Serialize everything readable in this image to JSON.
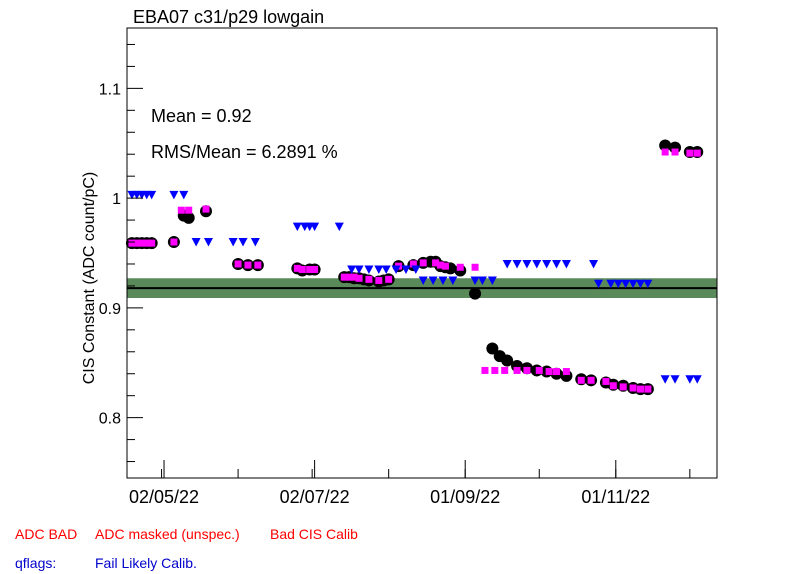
{
  "chart_data": {
    "type": "scatter",
    "title": "EBA07 c31/p29 lowgain",
    "ylabel": "CIS Constant (ADC count/pC)",
    "xlabel": "",
    "ylim": [
      0.745,
      1.155
    ],
    "y_ticks": [
      0.8,
      0.9,
      1,
      1.1
    ],
    "y_tick_labels": [
      "0.8",
      "0.9",
      "1",
      "1.1"
    ],
    "x_ticks": [
      "2022-05-02",
      "2022-07-02",
      "2022-09-01",
      "2022-11-01"
    ],
    "x_tick_labels": [
      "02/05/22",
      "02/07/22",
      "01/09/22",
      "01/11/22"
    ],
    "xlim": [
      "2022-04-17",
      "2022-12-12"
    ],
    "grid": false,
    "stats": {
      "mean_label": "Mean = 0.92",
      "rms_label": "RMS/Mean = 6.2891 %"
    },
    "mean_value": 0.918,
    "band": [
      0.909,
      0.927
    ],
    "colors": {
      "calibration": "#000000",
      "masked": "#ff00ff",
      "flag": "#0000ff",
      "band": "#5a8a5a",
      "legend_red": "#ff0000",
      "legend_blue": "#0000cc"
    },
    "series": [
      {
        "marker": "circle",
        "points": [
          [
            "2022-04-19",
            0.959
          ],
          [
            "2022-04-21",
            0.959
          ],
          [
            "2022-04-23",
            0.959
          ],
          [
            "2022-04-25",
            0.959
          ],
          [
            "2022-04-27",
            0.959
          ],
          [
            "2022-05-06",
            0.96
          ],
          [
            "2022-05-10",
            0.984
          ],
          [
            "2022-05-12",
            0.982
          ],
          [
            "2022-05-19",
            0.988
          ],
          [
            "2022-06-01",
            0.94
          ],
          [
            "2022-06-05",
            0.939
          ],
          [
            "2022-06-09",
            0.939
          ],
          [
            "2022-06-25",
            0.936
          ],
          [
            "2022-06-27",
            0.934
          ],
          [
            "2022-06-30",
            0.935
          ],
          [
            "2022-07-02",
            0.935
          ],
          [
            "2022-07-14",
            0.928
          ],
          [
            "2022-07-16",
            0.928
          ],
          [
            "2022-07-18",
            0.927
          ],
          [
            "2022-07-20",
            0.927
          ],
          [
            "2022-07-22",
            0.926
          ],
          [
            "2022-07-24",
            0.925
          ],
          [
            "2022-07-28",
            0.924
          ],
          [
            "2022-07-30",
            0.925
          ],
          [
            "2022-08-01",
            0.926
          ],
          [
            "2022-08-05",
            0.938
          ],
          [
            "2022-08-11",
            0.939
          ],
          [
            "2022-08-15",
            0.941
          ],
          [
            "2022-08-18",
            0.942
          ],
          [
            "2022-08-20",
            0.942
          ],
          [
            "2022-08-22",
            0.938
          ],
          [
            "2022-08-24",
            0.937
          ],
          [
            "2022-08-26",
            0.936
          ],
          [
            "2022-08-30",
            0.934
          ],
          [
            "2022-09-05",
            0.913
          ],
          [
            "2022-09-12",
            0.863
          ],
          [
            "2022-09-15",
            0.856
          ],
          [
            "2022-09-18",
            0.852
          ],
          [
            "2022-09-22",
            0.847
          ],
          [
            "2022-09-26",
            0.845
          ],
          [
            "2022-09-30",
            0.843
          ],
          [
            "2022-10-04",
            0.842
          ],
          [
            "2022-10-08",
            0.84
          ],
          [
            "2022-10-12",
            0.838
          ],
          [
            "2022-10-18",
            0.835
          ],
          [
            "2022-10-22",
            0.834
          ],
          [
            "2022-10-28",
            0.832
          ],
          [
            "2022-10-31",
            0.83
          ],
          [
            "2022-11-04",
            0.829
          ],
          [
            "2022-11-08",
            0.827
          ],
          [
            "2022-11-11",
            0.826
          ],
          [
            "2022-11-14",
            0.826
          ],
          [
            "2022-11-21",
            1.048
          ],
          [
            "2022-11-25",
            1.046
          ],
          [
            "2022-12-01",
            1.042
          ],
          [
            "2022-12-04",
            1.042
          ]
        ]
      },
      {
        "marker": "square",
        "points": [
          [
            "2022-04-19",
            0.959
          ],
          [
            "2022-04-21",
            0.959
          ],
          [
            "2022-04-23",
            0.959
          ],
          [
            "2022-04-25",
            0.959
          ],
          [
            "2022-04-27",
            0.959
          ],
          [
            "2022-05-06",
            0.96
          ],
          [
            "2022-05-09",
            0.989
          ],
          [
            "2022-05-12",
            0.989
          ],
          [
            "2022-05-19",
            0.99
          ],
          [
            "2022-06-01",
            0.94
          ],
          [
            "2022-06-05",
            0.939
          ],
          [
            "2022-06-09",
            0.939
          ],
          [
            "2022-06-25",
            0.936
          ],
          [
            "2022-06-27",
            0.935
          ],
          [
            "2022-06-30",
            0.935
          ],
          [
            "2022-07-02",
            0.935
          ],
          [
            "2022-07-14",
            0.928
          ],
          [
            "2022-07-16",
            0.928
          ],
          [
            "2022-07-18",
            0.928
          ],
          [
            "2022-07-20",
            0.927
          ],
          [
            "2022-07-24",
            0.926
          ],
          [
            "2022-07-28",
            0.925
          ],
          [
            "2022-08-01",
            0.926
          ],
          [
            "2022-08-05",
            0.938
          ],
          [
            "2022-08-11",
            0.94
          ],
          [
            "2022-08-15",
            0.941
          ],
          [
            "2022-08-20",
            0.941
          ],
          [
            "2022-08-22",
            0.939
          ],
          [
            "2022-08-24",
            0.938
          ],
          [
            "2022-08-30",
            0.937
          ],
          [
            "2022-09-05",
            0.937
          ],
          [
            "2022-09-09",
            0.843
          ],
          [
            "2022-09-13",
            0.843
          ],
          [
            "2022-09-17",
            0.843
          ],
          [
            "2022-09-22",
            0.843
          ],
          [
            "2022-09-26",
            0.843
          ],
          [
            "2022-10-01",
            0.843
          ],
          [
            "2022-10-05",
            0.842
          ],
          [
            "2022-10-08",
            0.842
          ],
          [
            "2022-10-12",
            0.842
          ],
          [
            "2022-10-18",
            0.834
          ],
          [
            "2022-10-22",
            0.834
          ],
          [
            "2022-10-28",
            0.833
          ],
          [
            "2022-10-31",
            0.829
          ],
          [
            "2022-11-04",
            0.828
          ],
          [
            "2022-11-08",
            0.827
          ],
          [
            "2022-11-11",
            0.826
          ],
          [
            "2022-11-14",
            0.826
          ],
          [
            "2022-11-21",
            1.042
          ],
          [
            "2022-11-25",
            1.042
          ],
          [
            "2022-12-01",
            1.041
          ],
          [
            "2022-12-04",
            1.041
          ]
        ]
      },
      {
        "marker": "triangle-down",
        "points": [
          [
            "2022-04-19",
            1.003
          ],
          [
            "2022-04-21",
            1.003
          ],
          [
            "2022-04-23",
            1.003
          ],
          [
            "2022-04-25",
            1.003
          ],
          [
            "2022-04-27",
            1.003
          ],
          [
            "2022-05-06",
            1.003
          ],
          [
            "2022-05-10",
            1.003
          ],
          [
            "2022-05-15",
            0.96
          ],
          [
            "2022-05-20",
            0.96
          ],
          [
            "2022-05-30",
            0.96
          ],
          [
            "2022-06-03",
            0.96
          ],
          [
            "2022-06-08",
            0.96
          ],
          [
            "2022-06-25",
            0.974
          ],
          [
            "2022-06-28",
            0.974
          ],
          [
            "2022-06-30",
            0.974
          ],
          [
            "2022-07-02",
            0.974
          ],
          [
            "2022-07-12",
            0.974
          ],
          [
            "2022-07-17",
            0.935
          ],
          [
            "2022-07-20",
            0.935
          ],
          [
            "2022-07-24",
            0.935
          ],
          [
            "2022-07-28",
            0.935
          ],
          [
            "2022-07-31",
            0.935
          ],
          [
            "2022-08-04",
            0.935
          ],
          [
            "2022-08-08",
            0.935
          ],
          [
            "2022-08-12",
            0.935
          ],
          [
            "2022-08-15",
            0.925
          ],
          [
            "2022-08-19",
            0.925
          ],
          [
            "2022-08-23",
            0.925
          ],
          [
            "2022-08-27",
            0.925
          ],
          [
            "2022-09-05",
            0.925
          ],
          [
            "2022-09-08",
            0.925
          ],
          [
            "2022-09-12",
            0.925
          ],
          [
            "2022-09-18",
            0.94
          ],
          [
            "2022-09-22",
            0.94
          ],
          [
            "2022-09-26",
            0.94
          ],
          [
            "2022-09-30",
            0.94
          ],
          [
            "2022-10-04",
            0.94
          ],
          [
            "2022-10-08",
            0.94
          ],
          [
            "2022-10-12",
            0.94
          ],
          [
            "2022-10-23",
            0.94
          ],
          [
            "2022-10-25",
            0.922
          ],
          [
            "2022-10-30",
            0.922
          ],
          [
            "2022-11-02",
            0.922
          ],
          [
            "2022-11-05",
            0.922
          ],
          [
            "2022-11-08",
            0.922
          ],
          [
            "2022-11-11",
            0.922
          ],
          [
            "2022-11-14",
            0.922
          ],
          [
            "2022-11-21",
            0.835
          ],
          [
            "2022-11-25",
            0.835
          ],
          [
            "2022-12-01",
            0.835
          ],
          [
            "2022-12-04",
            0.835
          ]
        ]
      }
    ]
  },
  "legend": {
    "adc_bad": "ADC BAD",
    "adc_masked": "ADC masked (unspec.)",
    "bad_cis": "Bad CIS Calib",
    "qflags": "qflags:",
    "fail_likely": "Fail Likely Calib."
  }
}
